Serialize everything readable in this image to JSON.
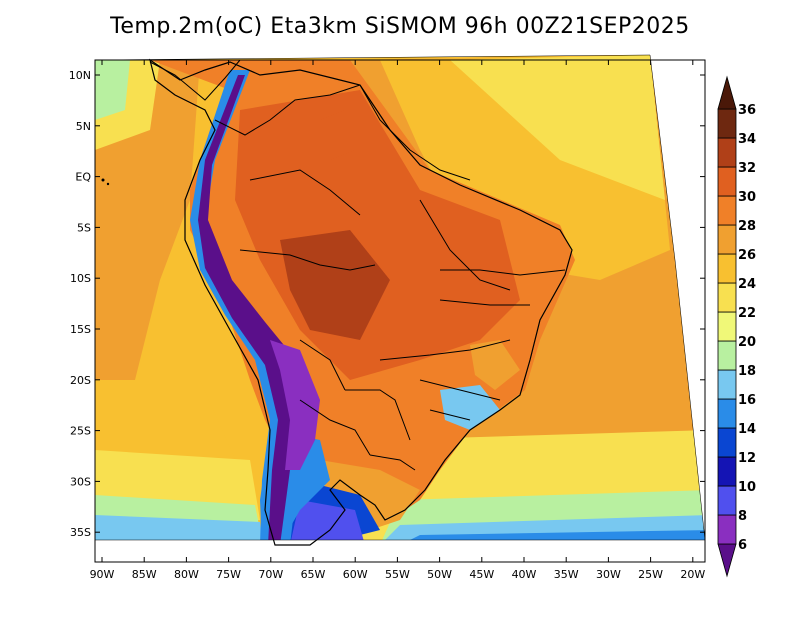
{
  "title": "Temp.2m(oC) Eta3km SiSMOM 96h 00Z21SEP2025",
  "latitude_labels": [
    "10N",
    "5N",
    "EQ",
    "5S",
    "10S",
    "15S",
    "20S",
    "25S",
    "30S",
    "35S"
  ],
  "longitude_labels": [
    "90W",
    "85W",
    "80W",
    "75W",
    "70W",
    "65W",
    "60W",
    "55W",
    "50W",
    "45W",
    "40W",
    "35W",
    "30W",
    "25W",
    "20W"
  ],
  "colorbar": {
    "labels": [
      "6",
      "8",
      "10",
      "12",
      "14",
      "16",
      "18",
      "20",
      "22",
      "24",
      "26",
      "28",
      "30",
      "32",
      "34",
      "36"
    ],
    "colors": [
      "#5a0f8a",
      "#8a2fc0",
      "#5050ee",
      "#1414b4",
      "#0a46d2",
      "#2a8ce8",
      "#78c8f0",
      "#b8f0a0",
      "#f0f878",
      "#f8e050",
      "#f8c030",
      "#f0a030",
      "#f08028",
      "#e06020",
      "#b04018",
      "#6e2810",
      "#4a1808"
    ]
  }
}
